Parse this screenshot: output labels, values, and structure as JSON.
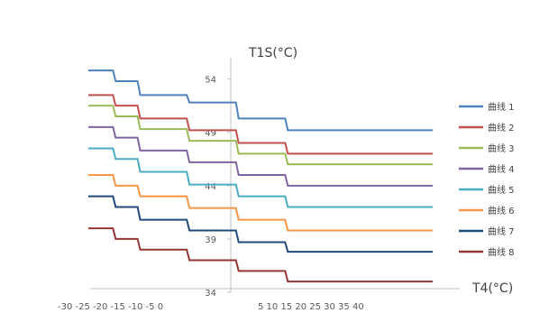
{
  "chart_data": {
    "type": "line",
    "title": "",
    "xlabel": "T4(°C)",
    "ylabel": "T1S(°C)",
    "x_tick_labels_left": "-30 -25 -20 -15 -10 -5 0",
    "x_tick_labels_right": "5 10 15 20 25 30 35 40",
    "xlim": [
      -30,
      40
    ],
    "ylim": [
      34,
      56
    ],
    "y_ticks": [
      34,
      39,
      44,
      49,
      54
    ],
    "legend_position": "right",
    "x_breaks": [
      -25,
      -20,
      -10,
      0,
      10,
      20
    ],
    "series": [
      {
        "name": "曲线 1",
        "color": "#4f81bd",
        "y": [
          54.8,
          53.8,
          52.5,
          51.8,
          50.3,
          49.2,
          49.2
        ]
      },
      {
        "name": "曲线 2",
        "color": "#c0504d",
        "y": [
          52.5,
          51.5,
          50.3,
          49.2,
          48.0,
          47.0,
          47.0
        ]
      },
      {
        "name": "曲线 3",
        "color": "#9bbb59",
        "y": [
          51.5,
          50.5,
          49.3,
          48.2,
          47.0,
          46.0,
          46.0
        ]
      },
      {
        "name": "曲线 4",
        "color": "#8064a2",
        "y": [
          49.5,
          48.5,
          47.3,
          46.2,
          45.0,
          44.0,
          44.0
        ]
      },
      {
        "name": "曲线 5",
        "color": "#4bacc6",
        "y": [
          47.5,
          46.5,
          45.3,
          44.1,
          43.0,
          42.0,
          42.0
        ]
      },
      {
        "name": "曲线 6",
        "color": "#f79646",
        "y": [
          45.0,
          44.0,
          43.0,
          41.9,
          40.8,
          39.8,
          39.8
        ]
      },
      {
        "name": "曲线 7",
        "color": "#1f497d",
        "y": [
          43.0,
          42.0,
          40.8,
          39.8,
          38.7,
          37.8,
          37.8
        ]
      },
      {
        "name": "曲线 8",
        "color": "#943634",
        "y": [
          40.0,
          39.0,
          38.0,
          37.0,
          36.0,
          35.0,
          35.0
        ]
      }
    ]
  }
}
